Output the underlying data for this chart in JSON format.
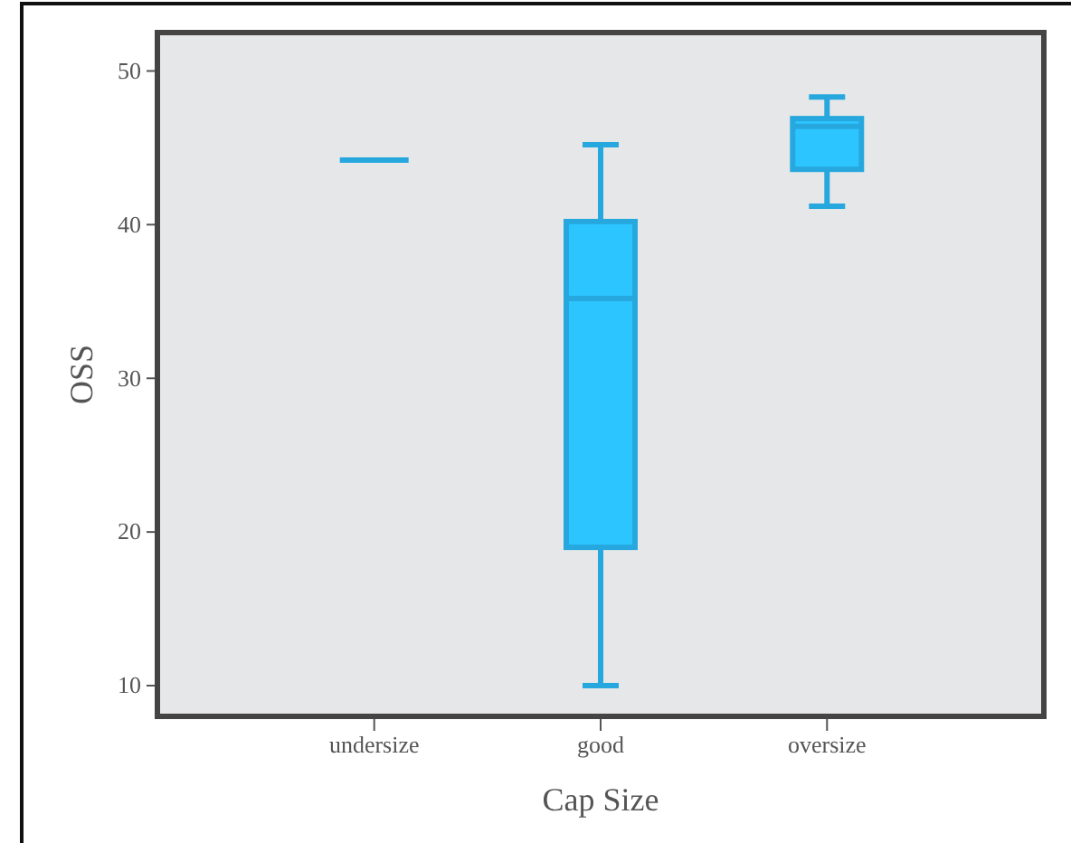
{
  "chart_data": {
    "type": "box",
    "xlabel": "Cap Size",
    "ylabel": "OSS",
    "categories": [
      "undersize",
      "good",
      "oversize"
    ],
    "boxes": [
      {
        "low": 44.2,
        "q1": 44.2,
        "median": 44.2,
        "q3": 44.2,
        "high": 44.2
      },
      {
        "low": 10,
        "q1": 19.0,
        "median": 35.2,
        "q3": 40.2,
        "high": 45.2
      },
      {
        "low": 41.2,
        "q1": 43.6,
        "median": 46.4,
        "q3": 46.9,
        "high": 48.3
      }
    ],
    "color": "#26a8de",
    "ylim": [
      8,
      52.5
    ],
    "yticks": [
      10,
      20,
      30,
      40,
      50
    ],
    "grid": false
  }
}
